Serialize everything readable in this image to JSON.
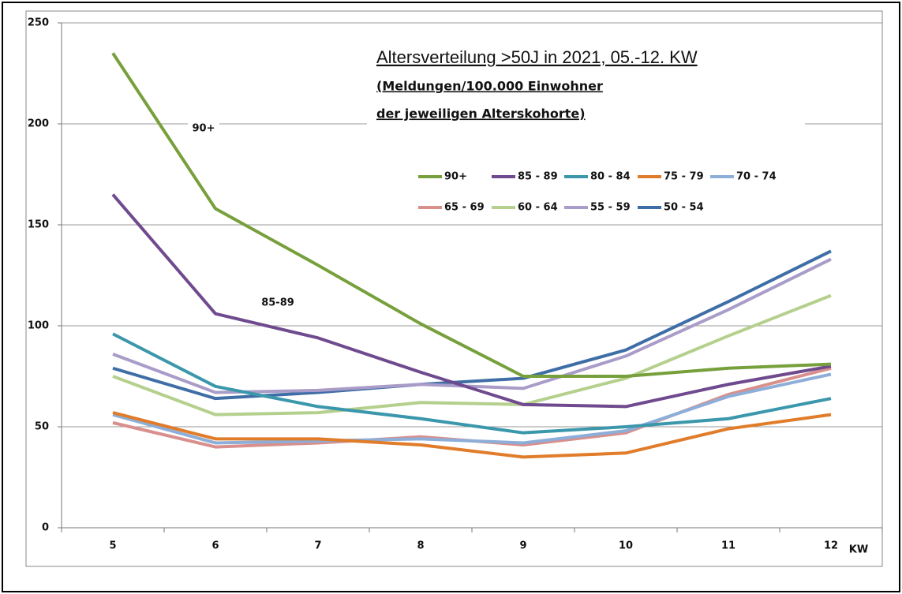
{
  "chart_data": {
    "type": "line",
    "title": "Altersverteilung  >50J in 2021, 05.-12. KW",
    "subtitle": [
      "(Meldungen/100.000 Einwohner",
      "der jeweiligen Alterskohorte)"
    ],
    "annotations": [
      "90+",
      "85-89"
    ],
    "x_label": "KW",
    "categories": [
      "5",
      "6",
      "7",
      "8",
      "9",
      "10",
      "11",
      "12"
    ],
    "ylim": [
      0,
      250
    ],
    "yticks": [
      0,
      50,
      100,
      150,
      200,
      250
    ],
    "grid": true,
    "series": [
      {
        "name": "90+",
        "color": "#77a03c",
        "values": [
          235,
          158,
          130,
          101,
          75,
          75,
          79,
          81
        ]
      },
      {
        "name": "85 - 89",
        "color": "#6f4a8e",
        "values": [
          165,
          106,
          94,
          77,
          61,
          60,
          71,
          80
        ]
      },
      {
        "name": "80 - 84",
        "color": "#3b97ab",
        "values": [
          96,
          70,
          60,
          54,
          47,
          50,
          54,
          64
        ]
      },
      {
        "name": "75 - 79",
        "color": "#e07c2a",
        "values": [
          57,
          44,
          44,
          41,
          35,
          37,
          49,
          56
        ]
      },
      {
        "name": "70 - 74",
        "color": "#8daed8",
        "values": [
          56,
          42,
          43,
          44,
          42,
          48,
          65,
          76
        ]
      },
      {
        "name": "65 - 69",
        "color": "#d98f8c",
        "values": [
          52,
          40,
          42,
          45,
          41,
          47,
          66,
          79
        ]
      },
      {
        "name": "60 - 64",
        "color": "#b5d08d",
        "values": [
          75,
          56,
          57,
          62,
          61,
          74,
          95,
          115
        ]
      },
      {
        "name": "55 - 59",
        "color": "#a99cc8",
        "values": [
          86,
          67,
          68,
          71,
          69,
          85,
          108,
          133
        ]
      },
      {
        "name": "50 - 54",
        "color": "#3f6ea6",
        "values": [
          79,
          64,
          67,
          71,
          74,
          88,
          112,
          137
        ]
      }
    ]
  }
}
